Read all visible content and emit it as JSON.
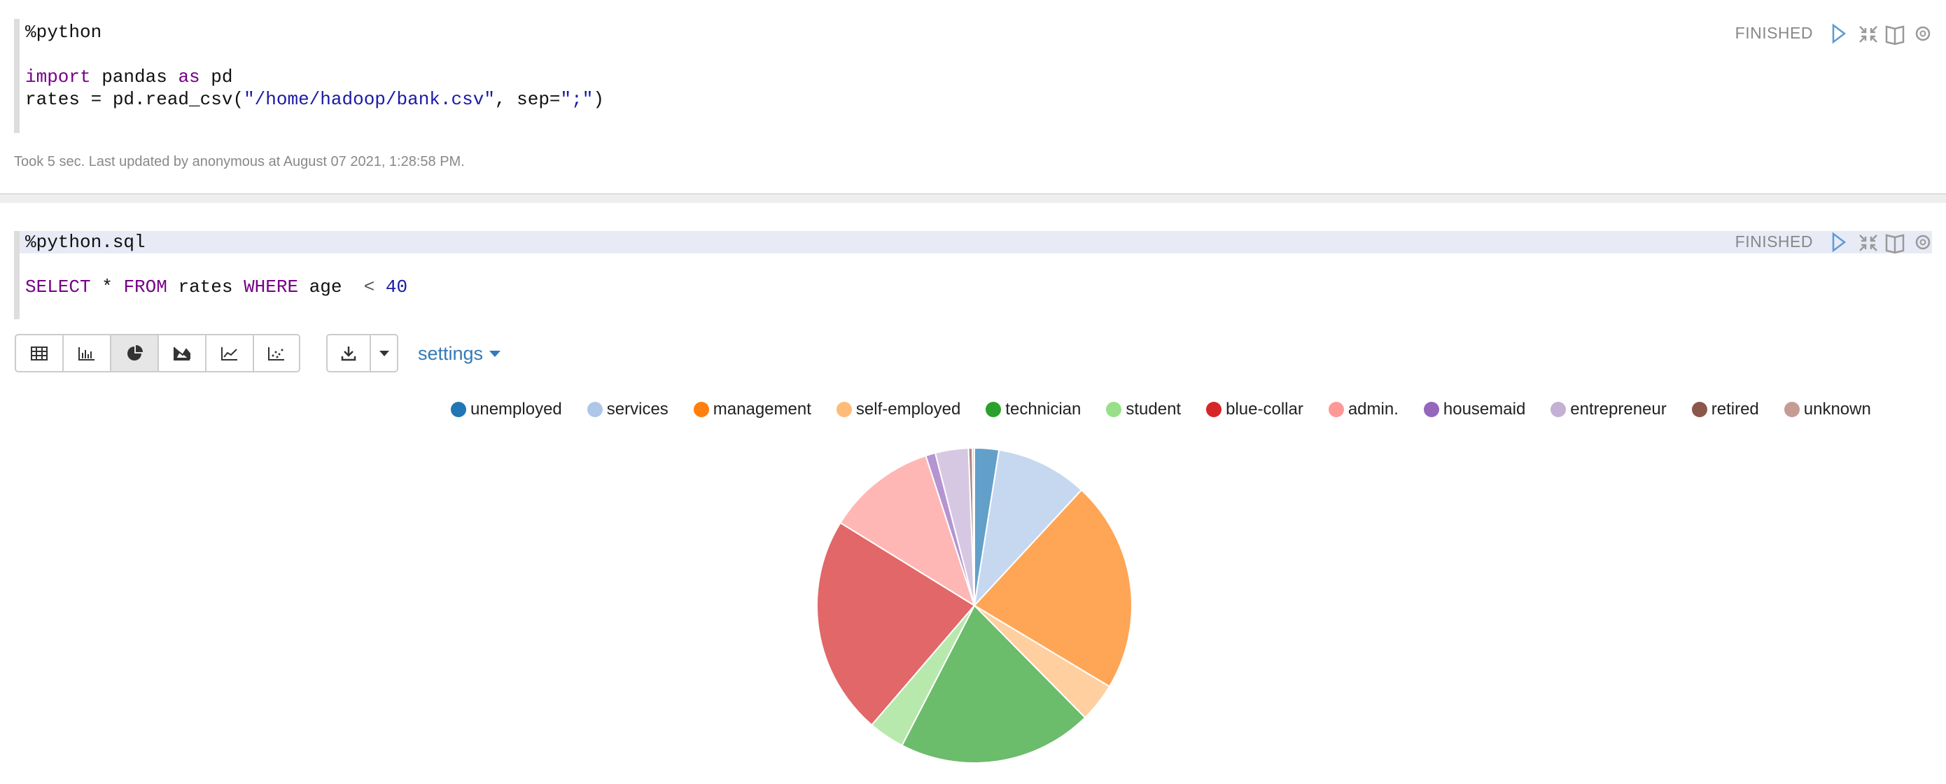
{
  "paragraphs": [
    {
      "code": [
        [
          "%python"
        ],
        [
          "import",
          " pandas ",
          "as",
          " pd"
        ],
        [
          "rates = pd.read_csv(",
          "\"/home/hadoop/bank.csv\"",
          ", sep=",
          "\";\"",
          ")"
        ]
      ],
      "status": "FINISHED",
      "footer": "Took 5 sec. Last updated by anonymous at August 07 2021, 1:28:58 PM."
    },
    {
      "code": [
        [
          "%python.sql"
        ],
        [
          "SELECT",
          " * ",
          "FROM",
          " rates ",
          "WHERE",
          " age ",
          " < ",
          "40"
        ]
      ],
      "status": "FINISHED",
      "settings": "settings"
    }
  ],
  "chart_data": {
    "type": "pie",
    "categories": [
      "unemployed",
      "services",
      "management",
      "self-employed",
      "technician",
      "student",
      "blue-collar",
      "admin.",
      "housemaid",
      "entrepreneur",
      "retired",
      "unknown"
    ],
    "values": [
      2.5,
      9.4,
      21.7,
      4,
      20,
      3.7,
      22.5,
      11.2,
      1,
      3.4,
      0.4,
      0.2
    ],
    "colors": [
      "#1f77b4",
      "#aec7e8",
      "#ff7f0e",
      "#ffbb78",
      "#2ca02c",
      "#98df8a",
      "#d62728",
      "#ff9896",
      "#9467bd",
      "#c5b0d5",
      "#8c564b",
      "#c49c94"
    ]
  }
}
